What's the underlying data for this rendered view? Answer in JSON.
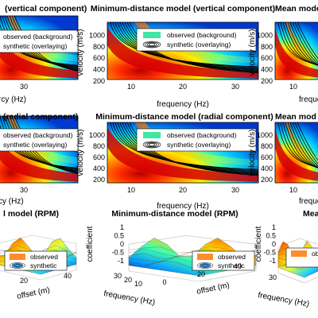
{
  "colors": {
    "observed_swatch": "#3ee6a8",
    "observed_swatch_rpm": "#ff8c2a",
    "contour": "#000000"
  },
  "chart_data": [
    {
      "type": "heatmap",
      "title": "(vertical component)",
      "xlabel": "rcy (Hz)",
      "ylabel": "",
      "x_ticks": [
        "30"
      ],
      "y_ticks": [],
      "legend": [
        "observed (background)",
        "synthetic (overlaying)"
      ],
      "legend_position": "top"
    },
    {
      "type": "heatmap",
      "title": "Minimum-distance model (vertical component)",
      "xlabel": "frequency (Hz)",
      "ylabel": "velocity (m/s)",
      "x_ticks": [
        "10",
        "20",
        "30"
      ],
      "y_ticks": [
        "200",
        "400",
        "600",
        "800",
        "1000"
      ],
      "ylim": [
        200,
        1100
      ],
      "legend": [
        "observed (background)",
        "synthetic (overlaying)"
      ],
      "legend_position": "top-right"
    },
    {
      "type": "heatmap",
      "title": "Mean mode",
      "xlabel": "freque",
      "ylabel": "velocity (m/s)",
      "x_ticks": [
        "10"
      ],
      "y_ticks": [
        "200",
        "400",
        "600",
        "800",
        "1000"
      ]
    },
    {
      "type": "heatmap",
      "title": "l (radial component)",
      "xlabel": "cy (Hz)",
      "x_ticks": [
        "30"
      ],
      "legend": [
        "observed (background)",
        "synthetic (overlaying)"
      ]
    },
    {
      "type": "heatmap",
      "title": "Minimum-distance model (radial component)",
      "xlabel": "frequency (Hz)",
      "ylabel": "velocity (m/s)",
      "x_ticks": [
        "10",
        "20",
        "30"
      ],
      "y_ticks": [
        "200",
        "400",
        "600",
        "800",
        "1000"
      ],
      "ylim": [
        200,
        1100
      ],
      "legend": [
        "observed (background)",
        "synthetic (overlaying)"
      ],
      "legend_position": "top-right"
    },
    {
      "type": "heatmap",
      "title": "Mean mod",
      "xlabel": "freque",
      "ylabel": "velocity (m/s)",
      "x_ticks": [
        "10"
      ],
      "y_ticks": [
        "200",
        "400",
        "600",
        "800",
        "1000"
      ]
    },
    {
      "type": "area",
      "title": "l model (RPM)",
      "xlabel": "offset (m)",
      "x_ticks": [
        "20",
        "40"
      ],
      "z_ticks": [],
      "legend": [
        "observed",
        "synthetic"
      ]
    },
    {
      "type": "area",
      "title": "Minimum-distance model (RPM)",
      "xlabel": "offset (m)",
      "ylabel": "frequency (Hz)",
      "zlabel": "coefficient",
      "y_ticks": [
        "30",
        "20",
        "10"
      ],
      "x_ticks": [
        "0",
        "20",
        "40"
      ],
      "z_ticks": [
        "1",
        "0.5",
        "0",
        "-0.5",
        "-1"
      ],
      "legend": [
        "observed",
        "synthetic"
      ]
    },
    {
      "type": "area",
      "title": "Mea",
      "ylabel": "frequency (Hz)",
      "zlabel": "coefficient",
      "y_ticks": [
        "30"
      ],
      "z_ticks": [
        "1",
        "0.5",
        "0",
        "-0.5",
        "-1"
      ],
      "legend": [
        "observed"
      ]
    }
  ]
}
